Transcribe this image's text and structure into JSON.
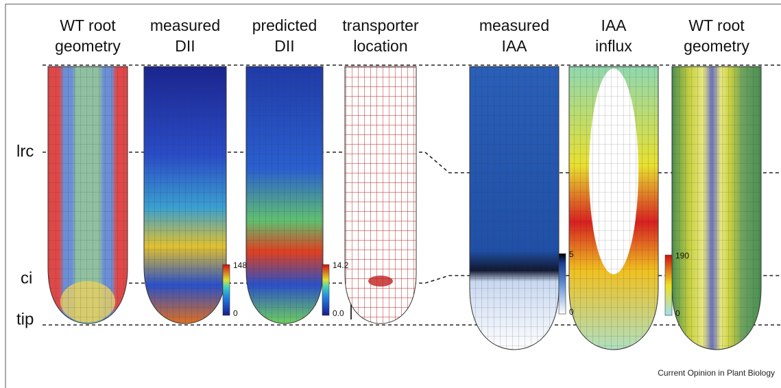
{
  "columns": [
    {
      "title": [
        "WT root",
        "geometry"
      ]
    },
    {
      "title": [
        "measured",
        "DII"
      ]
    },
    {
      "title": [
        "predicted",
        "DII"
      ]
    },
    {
      "title": [
        "transporter",
        "location"
      ]
    },
    {
      "title": [
        "measured",
        "IAA"
      ]
    },
    {
      "title": [
        "IAA",
        "influx"
      ]
    },
    {
      "title": [
        "WT root",
        "geometry"
      ]
    }
  ],
  "levels": [
    "lrc",
    "ci",
    "tip"
  ],
  "colorbars": [
    {
      "max": "148",
      "min": "0"
    },
    {
      "max": "14.2",
      "min": "0.0"
    },
    {
      "max": "5",
      "min": "0"
    },
    {
      "max": "190",
      "min": "0"
    }
  ],
  "footer": "Current Opinion in Plant Biology"
}
